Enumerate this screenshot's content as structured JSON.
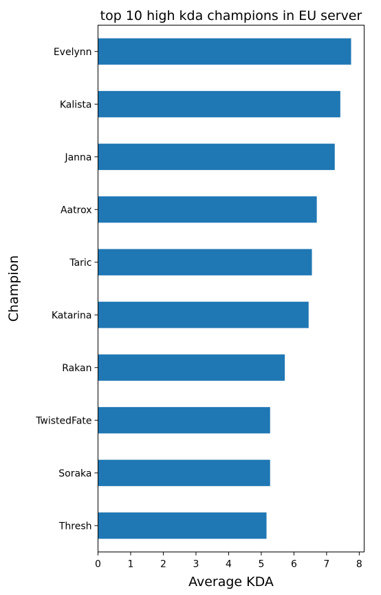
{
  "chart_data": {
    "type": "bar",
    "orientation": "horizontal",
    "title": "top 10 high kda champions in EU server",
    "xlabel": "Average KDA",
    "ylabel": "Champion",
    "categories": [
      "Evelynn",
      "Kalista",
      "Janna",
      "Aatrox",
      "Taric",
      "Katarina",
      "Rakan",
      "TwistedFate",
      "Soraka",
      "Thresh"
    ],
    "values": [
      7.75,
      7.42,
      7.25,
      6.7,
      6.55,
      6.45,
      5.72,
      5.27,
      5.27,
      5.16
    ],
    "xlim": [
      0,
      8.15
    ],
    "xticks": [
      "0",
      "1",
      "2",
      "3",
      "4",
      "5",
      "6",
      "7",
      "8"
    ],
    "grid": false,
    "bar_color": "#1f77b4"
  }
}
